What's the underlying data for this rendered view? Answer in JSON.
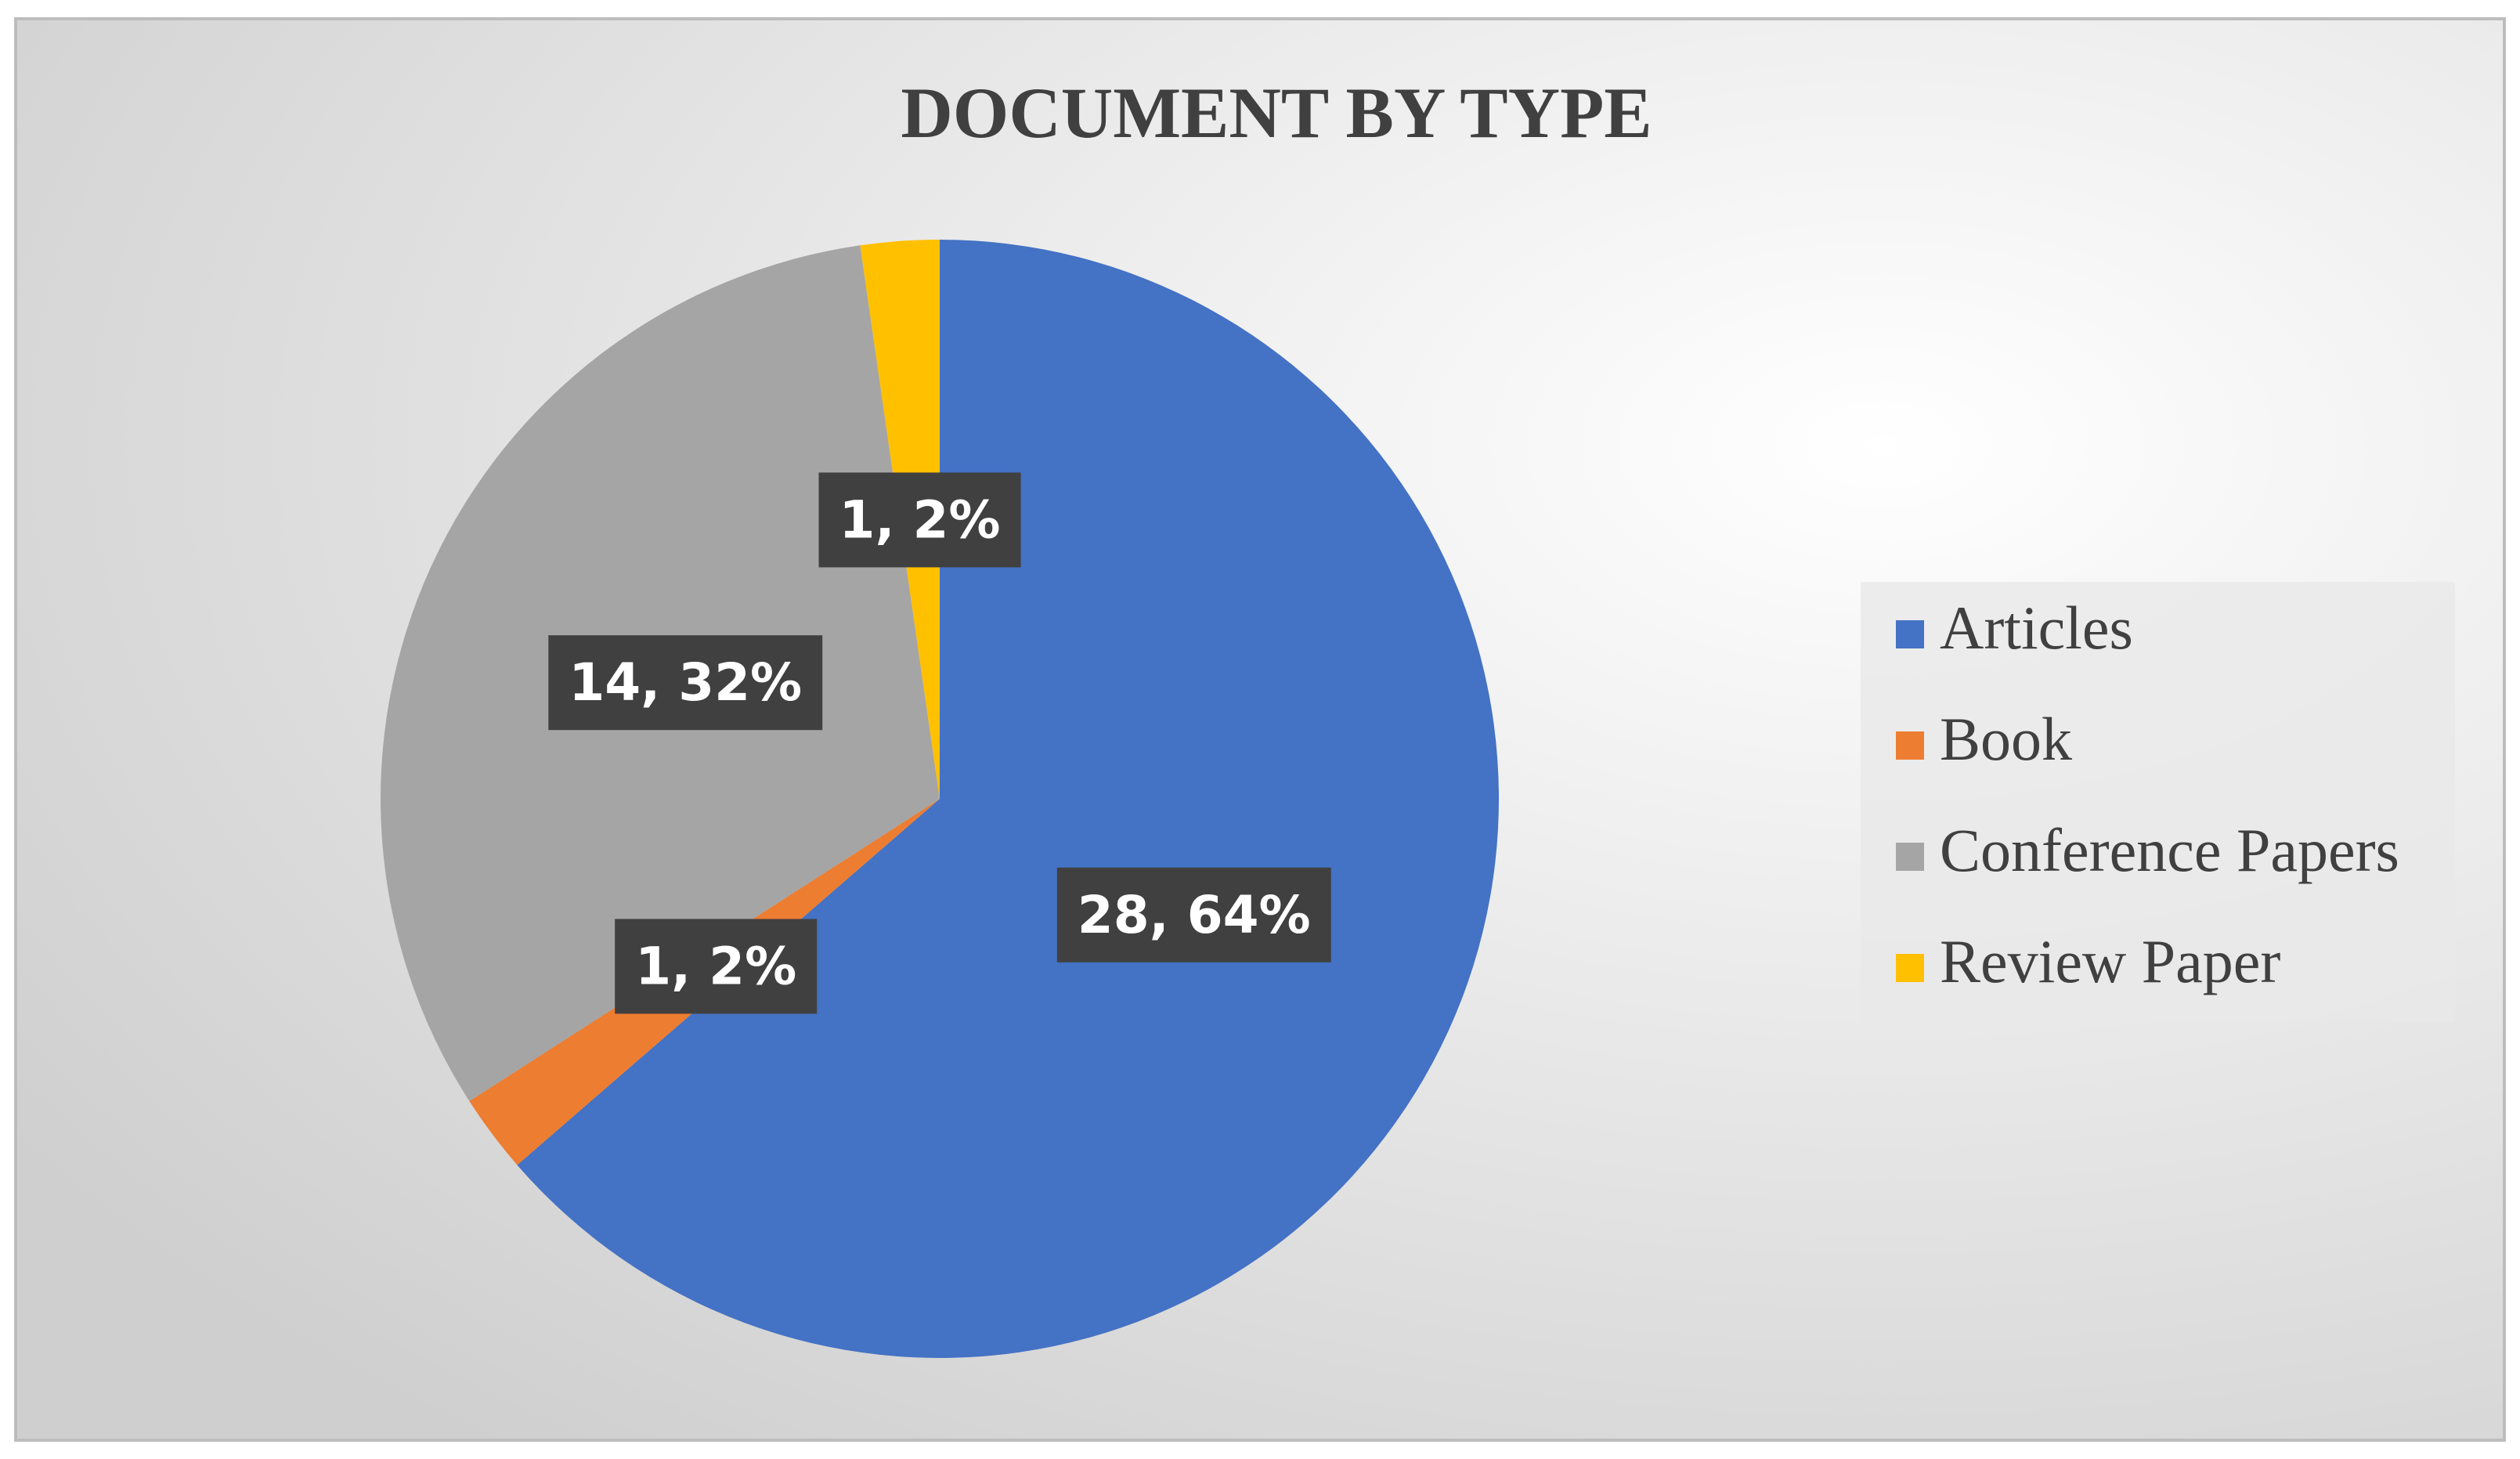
{
  "chart_data": {
    "type": "pie",
    "title": "DOCUMENT BY TYPE",
    "categories": [
      "Articles",
      "Book",
      "Conference Papers",
      "Review Paper"
    ],
    "values": [
      28,
      1,
      14,
      1
    ],
    "value_labels": [
      "28, 64%",
      "1, 2%",
      "14, 32%",
      "1, 2%"
    ],
    "colors": [
      "#4472c4",
      "#ed7d31",
      "#a5a5a5",
      "#ffc000"
    ],
    "legend": "right"
  }
}
